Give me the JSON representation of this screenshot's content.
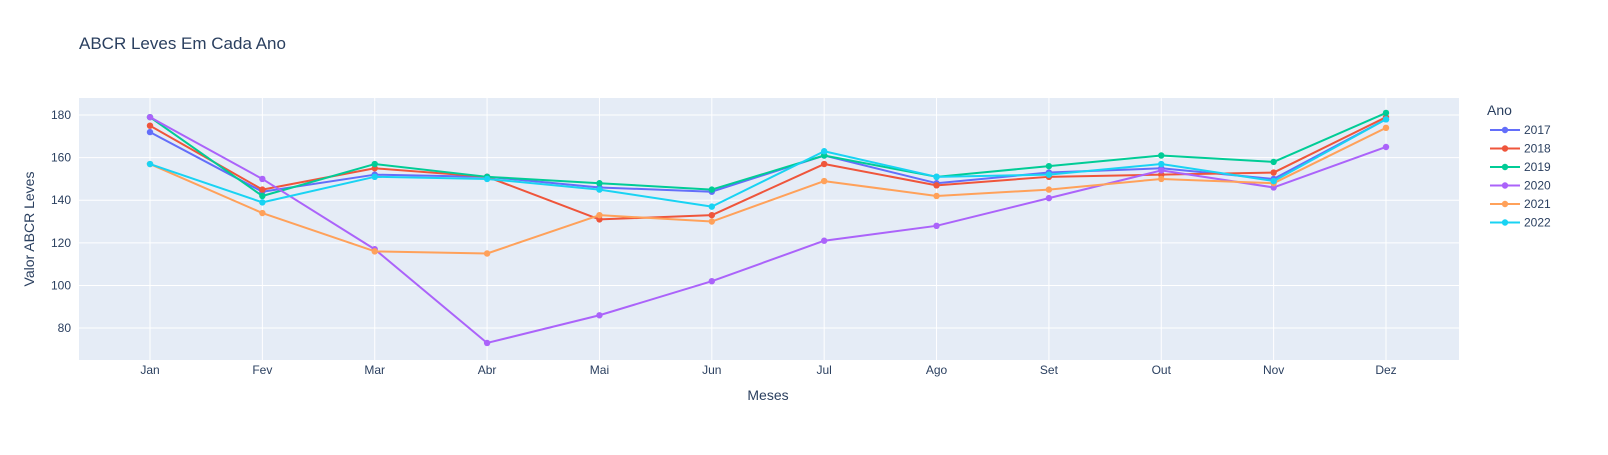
{
  "chart_data": {
    "type": "line",
    "title": "ABCR Leves Em Cada Ano",
    "xlabel": "Meses",
    "ylabel": "Valor ABCR Leves",
    "categories": [
      "Jan",
      "Fev",
      "Mar",
      "Abr",
      "Mai",
      "Jun",
      "Jul",
      "Ago",
      "Set",
      "Out",
      "Nov",
      "Dez"
    ],
    "ylim": [
      65,
      188
    ],
    "yticks": [
      80,
      100,
      120,
      140,
      160,
      180
    ],
    "grid": true,
    "legend": {
      "title": "Ano",
      "position": "right"
    },
    "plot_bgcolor": "#E5ECF6",
    "series": [
      {
        "name": "2017",
        "color": "#636EFA",
        "values": [
          172,
          144,
          152,
          151,
          146,
          144,
          161,
          148,
          153,
          155,
          150,
          178
        ]
      },
      {
        "name": "2018",
        "color": "#EF553B",
        "values": [
          175,
          145,
          155,
          151,
          131,
          133,
          157,
          147,
          151,
          152,
          153,
          179
        ]
      },
      {
        "name": "2019",
        "color": "#00CC96",
        "values": [
          179,
          142,
          157,
          151,
          148,
          145,
          161,
          151,
          156,
          161,
          158,
          181
        ]
      },
      {
        "name": "2020",
        "color": "#AB63FA",
        "values": [
          179,
          150,
          117,
          73,
          86,
          102,
          121,
          128,
          141,
          154,
          146,
          165
        ]
      },
      {
        "name": "2021",
        "color": "#FFA15A",
        "values": [
          157,
          134,
          116,
          115,
          133,
          130,
          149,
          142,
          145,
          150,
          148,
          174
        ]
      },
      {
        "name": "2022",
        "color": "#19D3F3",
        "values": [
          157,
          139,
          151,
          150,
          145,
          137,
          163,
          151,
          152,
          157,
          149,
          178
        ]
      }
    ]
  }
}
